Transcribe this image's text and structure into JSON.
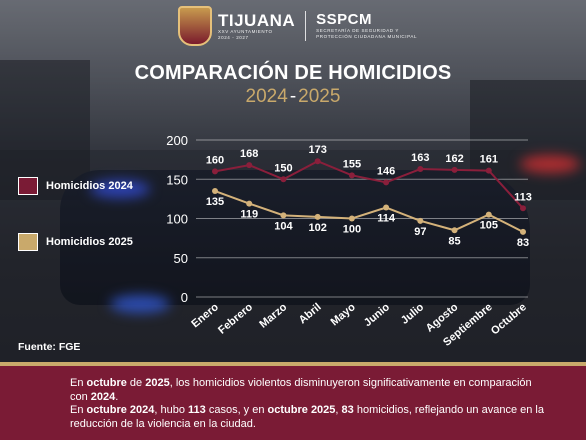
{
  "header": {
    "logo_name": "TIJUANA",
    "logo_sub1": "XXV AYUNTAMIENTO",
    "logo_sub2": "2024 - 2027",
    "agency": "SSPCM",
    "agency_sub1": "SECRETARÍA DE SEGURIDAD Y",
    "agency_sub2": "PROTECCIÓN CIUDADANA MUNICIPAL"
  },
  "title": "COMPARACIÓN DE HOMICIDIOS",
  "subtitle": {
    "year_a": "2024",
    "dash": "-",
    "year_b": "2025"
  },
  "legend": [
    {
      "label": "Homicidios 2024",
      "color": "#7a1b35"
    },
    {
      "label": "Homicidios 2025",
      "color": "#c9a96b"
    }
  ],
  "source": "Fuente: FGE",
  "chart_data": {
    "type": "line",
    "categories": [
      "Enero",
      "Febrero",
      "Marzo",
      "Abril",
      "Mayo",
      "Junio",
      "Julio",
      "Agosto",
      "Septiembre",
      "Octubre"
    ],
    "series": [
      {
        "name": "Homicidios 2024",
        "color": "#8a1f3b",
        "values": [
          160,
          168,
          150,
          173,
          155,
          146,
          163,
          162,
          161,
          113
        ]
      },
      {
        "name": "Homicidios 2025",
        "color": "#d4b27a",
        "values": [
          135,
          119,
          104,
          102,
          100,
          114,
          97,
          85,
          105,
          83
        ]
      }
    ],
    "yticks": [
      0,
      50,
      100,
      150,
      200
    ],
    "ylim": [
      0,
      200
    ],
    "grid": true
  },
  "footer": {
    "l1_a": "En ",
    "l1_b": "octubre",
    "l1_c": " de ",
    "l1_d": "2025",
    "l1_e": ", los homicidios violentos disminuyeron significativamente en comparación con ",
    "l1_f": "2024",
    "l1_g": ".",
    "l2_a": "En ",
    "l2_b": "octubre 2024",
    "l2_c": ", hubo ",
    "l2_d": "113",
    "l2_e": " casos, y en ",
    "l2_f": "octubre 2025",
    "l2_g": ", ",
    "l2_h": "83",
    "l2_i": " homicidios, reflejando un avance en la reducción de la violencia en la ciudad."
  }
}
